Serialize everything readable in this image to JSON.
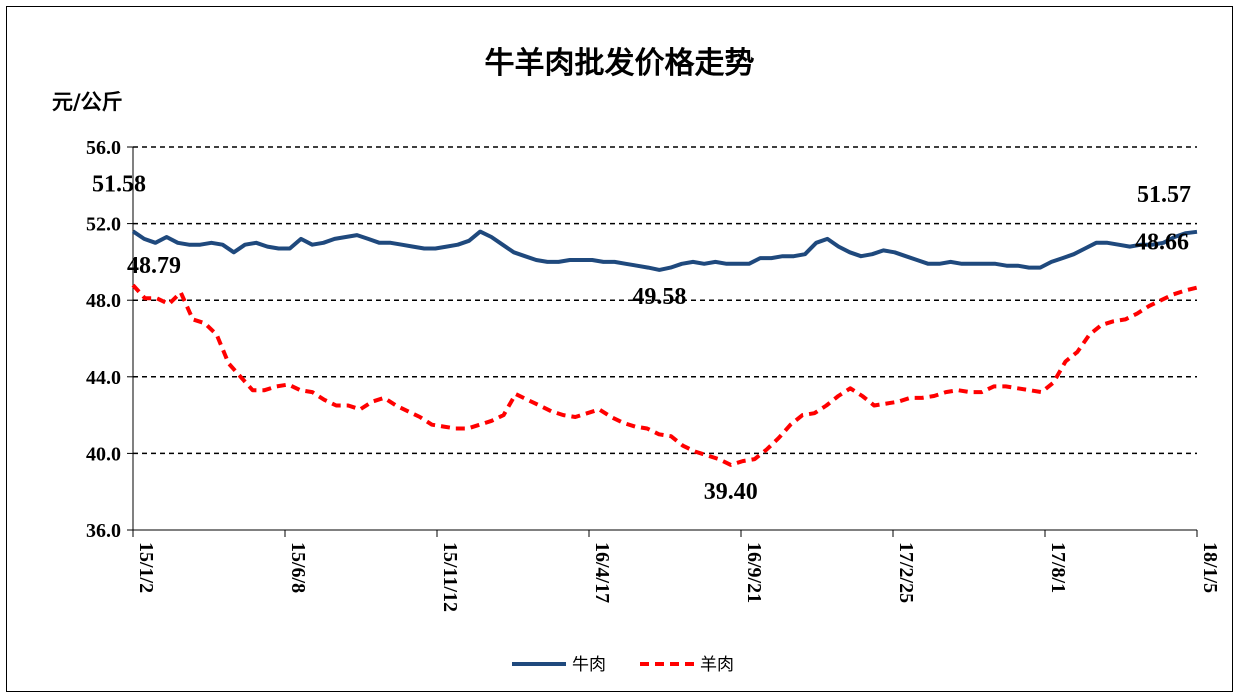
{
  "chart_data": {
    "type": "line",
    "title": "牛羊肉批发价格走势",
    "ylabel": "元/公斤",
    "ylim": [
      36,
      56
    ],
    "yticks": [
      "36.0",
      "40.0",
      "44.0",
      "48.0",
      "52.0",
      "56.0"
    ],
    "xticks": [
      "15/1/2",
      "15/6/8",
      "15/11/12",
      "16/4/17",
      "16/9/21",
      "17/2/25",
      "17/8/1",
      "18/1/5"
    ],
    "grid": "horizontal-dashed",
    "legend_position": "bottom",
    "series": [
      {
        "name": "牛肉",
        "color": "#1F497D",
        "style": "solid",
        "values": [
          51.6,
          51.2,
          51.0,
          51.3,
          51.0,
          50.9,
          50.9,
          51.0,
          50.9,
          50.5,
          50.9,
          51.0,
          50.8,
          50.7,
          50.7,
          51.2,
          50.9,
          51.0,
          51.2,
          51.3,
          51.4,
          51.2,
          51.0,
          51.0,
          50.9,
          50.8,
          50.7,
          50.7,
          50.8,
          50.9,
          51.1,
          51.58,
          51.3,
          50.9,
          50.5,
          50.3,
          50.1,
          50.0,
          50.0,
          50.1,
          50.1,
          50.1,
          50.0,
          50.0,
          49.9,
          49.8,
          49.7,
          49.58,
          49.7,
          49.9,
          50.0,
          49.9,
          50.0,
          49.9,
          49.9,
          49.9,
          50.2,
          50.2,
          50.3,
          50.3,
          50.4,
          51.0,
          51.2,
          50.8,
          50.5,
          50.3,
          50.4,
          50.6,
          50.5,
          50.3,
          50.1,
          49.9,
          49.9,
          50.0,
          49.9,
          49.9,
          49.9,
          49.9,
          49.8,
          49.8,
          49.7,
          49.7,
          50.0,
          50.2,
          50.4,
          50.7,
          51.0,
          51.0,
          50.9,
          50.8,
          50.9,
          50.9,
          51.0,
          51.3,
          51.5,
          51.57
        ]
      },
      {
        "name": "羊肉",
        "color": "#FF0000",
        "style": "dashed",
        "values": [
          48.79,
          48.1,
          48.1,
          47.8,
          48.4,
          47.0,
          46.8,
          46.2,
          44.7,
          44.0,
          43.3,
          43.3,
          43.5,
          43.6,
          43.3,
          43.2,
          42.8,
          42.5,
          42.5,
          42.3,
          42.7,
          42.9,
          42.5,
          42.2,
          41.9,
          41.5,
          41.4,
          41.3,
          41.3,
          41.5,
          41.7,
          42.0,
          43.1,
          42.8,
          42.5,
          42.2,
          42.0,
          41.9,
          42.1,
          42.3,
          41.9,
          41.6,
          41.4,
          41.3,
          41.0,
          40.9,
          40.4,
          40.1,
          39.9,
          39.7,
          39.4,
          39.6,
          39.7,
          40.2,
          40.8,
          41.5,
          42.0,
          42.1,
          42.5,
          43.0,
          43.4,
          43.0,
          42.5,
          42.6,
          42.7,
          42.9,
          42.9,
          43.0,
          43.2,
          43.3,
          43.2,
          43.2,
          43.5,
          43.5,
          43.4,
          43.3,
          43.2,
          43.7,
          44.8,
          45.3,
          46.2,
          46.7,
          46.9,
          47.0,
          47.3,
          47.7,
          48.0,
          48.3,
          48.5,
          48.66
        ]
      }
    ],
    "annotations": [
      {
        "text": "48.79",
        "series": "羊肉",
        "at": "start"
      },
      {
        "text": "51.58",
        "series": "牛肉",
        "at": "max"
      },
      {
        "text": "49.58",
        "series": "牛肉",
        "at": "min"
      },
      {
        "text": "39.40",
        "series": "羊肉",
        "at": "min"
      },
      {
        "text": "51.57",
        "series": "牛肉",
        "at": "end"
      },
      {
        "text": "48.66",
        "series": "羊肉",
        "at": "end"
      }
    ]
  }
}
